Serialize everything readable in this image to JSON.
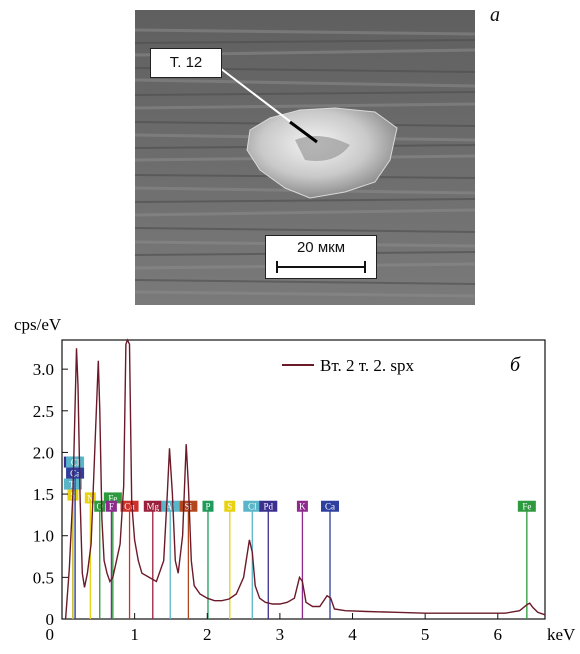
{
  "figure": {
    "panel_a_letter": "а",
    "panel_b_letter": "б",
    "point_label": "Т. 12",
    "scale_bar_label": "20 мкм"
  },
  "chart_data": {
    "type": "line",
    "ylabel": "cps/eV",
    "xlabel": "keV",
    "xlim": [
      0.0,
      6.65
    ],
    "ylim": [
      0,
      3.35
    ],
    "x_ticks": [
      1,
      2,
      3,
      4,
      5,
      6
    ],
    "y_ticks": [
      0,
      0.5,
      1.0,
      1.5,
      2.0,
      2.5,
      3.0
    ],
    "y_tick_labels": [
      "0",
      "0.5",
      "1.0",
      "1.5",
      "2.0",
      "2.5",
      "3.0"
    ],
    "legend": "top-right",
    "series": [
      {
        "name": "Вт. 2 т. 2. spx",
        "color": "#6b1a2a",
        "x": [
          0.05,
          0.1,
          0.15,
          0.2,
          0.22,
          0.25,
          0.28,
          0.31,
          0.35,
          0.4,
          0.45,
          0.5,
          0.52,
          0.55,
          0.58,
          0.62,
          0.66,
          0.7,
          0.75,
          0.8,
          0.85,
          0.88,
          0.9,
          0.93,
          0.96,
          1.0,
          1.05,
          1.1,
          1.2,
          1.3,
          1.4,
          1.45,
          1.48,
          1.52,
          1.56,
          1.6,
          1.66,
          1.71,
          1.74,
          1.78,
          1.82,
          1.9,
          2.0,
          2.1,
          2.2,
          2.3,
          2.4,
          2.5,
          2.58,
          2.62,
          2.66,
          2.72,
          2.8,
          2.9,
          3.0,
          3.1,
          3.2,
          3.27,
          3.31,
          3.36,
          3.45,
          3.55,
          3.65,
          3.7,
          3.75,
          3.9,
          4.2,
          4.6,
          5.0,
          5.4,
          5.8,
          6.1,
          6.3,
          6.4,
          6.44,
          6.48,
          6.55,
          6.65
        ],
        "y": [
          0.0,
          0.6,
          1.5,
          3.25,
          2.8,
          1.4,
          0.55,
          0.38,
          0.55,
          0.9,
          2.0,
          3.1,
          2.5,
          1.2,
          0.7,
          0.55,
          0.45,
          0.5,
          0.7,
          0.9,
          1.6,
          3.3,
          3.4,
          3.3,
          1.4,
          0.95,
          0.7,
          0.55,
          0.5,
          0.45,
          0.7,
          1.5,
          2.05,
          1.5,
          0.7,
          0.55,
          1.0,
          2.1,
          1.6,
          0.7,
          0.4,
          0.3,
          0.25,
          0.22,
          0.22,
          0.24,
          0.3,
          0.5,
          0.95,
          0.8,
          0.4,
          0.25,
          0.2,
          0.18,
          0.18,
          0.2,
          0.25,
          0.5,
          0.45,
          0.2,
          0.15,
          0.15,
          0.28,
          0.25,
          0.12,
          0.1,
          0.09,
          0.08,
          0.07,
          0.07,
          0.07,
          0.07,
          0.1,
          0.17,
          0.19,
          0.14,
          0.08,
          0.05
        ]
      }
    ],
    "element_lines": [
      {
        "element": "Pd",
        "x": 0.15,
        "color": "#3a2f8f"
      },
      {
        "element": "K",
        "x": 0.15,
        "color": "#8e2a8e"
      },
      {
        "element": "Ti",
        "x": 0.15,
        "color": "#58b6c8"
      },
      {
        "element": "S",
        "x": 0.15,
        "color": "#e8d20f"
      },
      {
        "element": "N",
        "x": 0.39,
        "color": "#e8d20f"
      },
      {
        "element": "Fe",
        "x": 0.7,
        "color": "#2e9a3e"
      },
      {
        "element": "Cl",
        "x": 0.18,
        "color": "#58b6c8"
      },
      {
        "element": "Ca",
        "x": 0.18,
        "color": "#2f3f9f"
      },
      {
        "element": "O",
        "x": 0.52,
        "color": "#2e9a3e"
      },
      {
        "element": "F",
        "x": 0.68,
        "color": "#8e2a8e"
      },
      {
        "element": "Cu",
        "x": 0.93,
        "color": "#d0302a"
      },
      {
        "element": "Mg",
        "x": 1.25,
        "color": "#9a1f3a"
      },
      {
        "element": "Al",
        "x": 1.49,
        "color": "#58b6c8"
      },
      {
        "element": "Si",
        "x": 1.74,
        "color": "#b2471e"
      },
      {
        "element": "P",
        "x": 2.01,
        "color": "#1e9a5a"
      },
      {
        "element": "S",
        "x": 2.31,
        "color": "#e8d20f"
      },
      {
        "element": "Cl",
        "x": 2.62,
        "color": "#58b6c8"
      },
      {
        "element": "Pd",
        "x": 2.84,
        "color": "#3a2f8f"
      },
      {
        "element": "K",
        "x": 3.31,
        "color": "#8e2a8e"
      },
      {
        "element": "Ca",
        "x": 3.69,
        "color": "#2f3f9f"
      },
      {
        "element": "Fe",
        "x": 6.4,
        "color": "#2e9a3e"
      }
    ]
  }
}
